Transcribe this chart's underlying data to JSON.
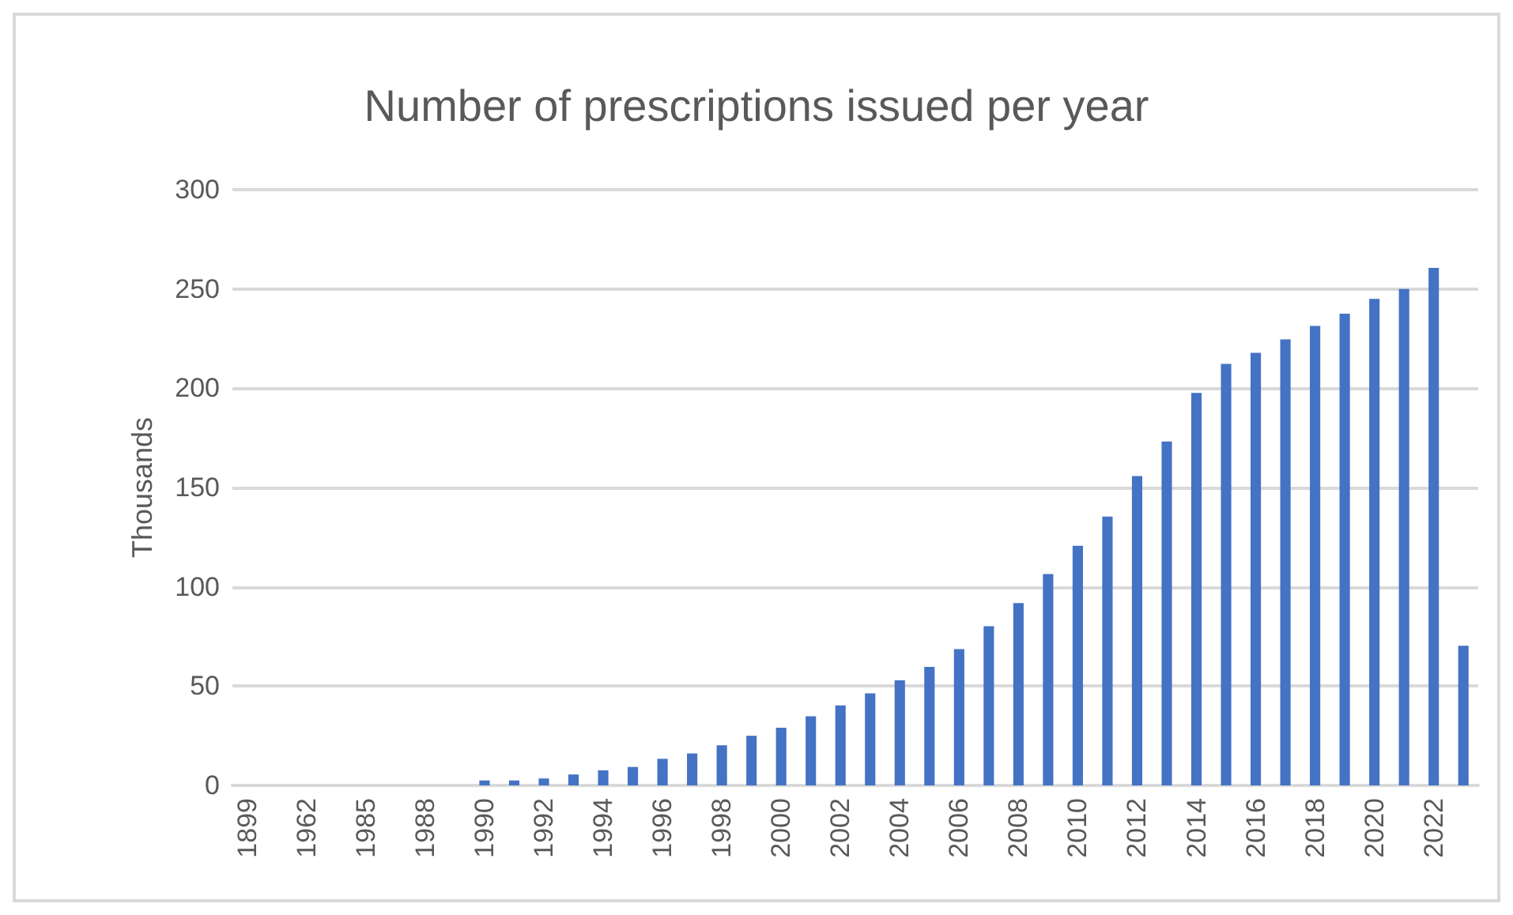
{
  "chart_data": {
    "type": "bar",
    "title": "Number of prescriptions issued per year",
    "ylabel": "Thousands",
    "categories": [
      "1899",
      null,
      "1962",
      null,
      "1985",
      null,
      "1988",
      null,
      "1990",
      null,
      "1992",
      null,
      "1994",
      null,
      "1996",
      null,
      "1998",
      null,
      "2000",
      null,
      "2002",
      null,
      "2004",
      null,
      "2006",
      null,
      "2008",
      null,
      "2010",
      null,
      "2012",
      null,
      "2014",
      null,
      "2016",
      null,
      "2018",
      null,
      "2020",
      null,
      "2022",
      null
    ],
    "values": [
      0,
      0,
      0,
      0,
      0,
      0,
      0,
      0,
      2.5,
      2.5,
      3.5,
      5.5,
      7.6,
      9.3,
      13.4,
      16.1,
      20.2,
      25,
      29,
      34.8,
      40.3,
      46.4,
      52.9,
      59.7,
      68.6,
      80.2,
      91.8,
      106.4,
      120.7,
      135.4,
      155.8,
      173.2,
      197.6,
      212.3,
      217.8,
      224.6,
      231.4,
      237.5,
      245,
      250,
      260.6,
      70.3
    ],
    "color": "#4472c4",
    "ylim": [
      0,
      300
    ],
    "yticks": [
      0,
      50,
      100,
      150,
      200,
      250,
      300
    ],
    "grid": "y"
  }
}
